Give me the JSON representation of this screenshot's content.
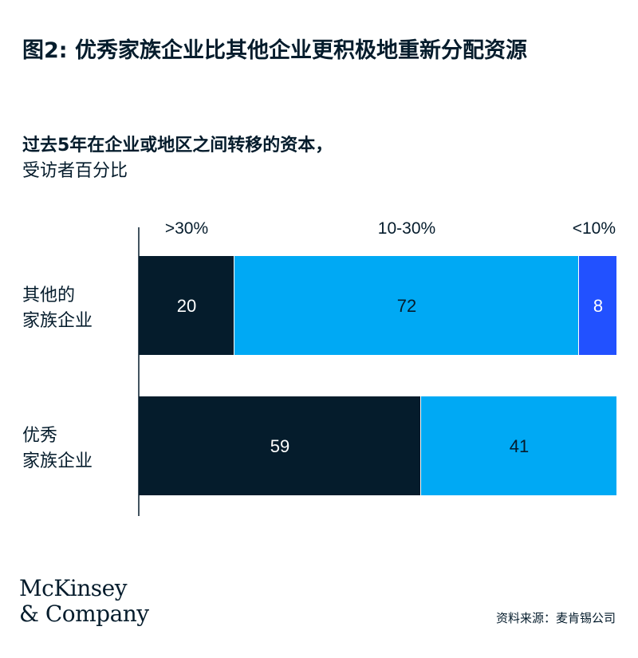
{
  "title": "图2: 优秀家族企业比其他企业更积极地重新分配资源",
  "subtitle": "过去5年在企业或地区之间转移的资本，",
  "subtitle_unit": "受访者百分比",
  "logo": {
    "line1": "McKinsey",
    "line2": "& Company"
  },
  "source": "资料来源：麦肯锡公司",
  "colors": {
    "dark": "#051c2c",
    "light_blue": "#00a9f4",
    "blue": "#2251ff",
    "text_on_dark": "#ffffff",
    "text_on_light": "#051c2c"
  },
  "chart_data": {
    "type": "bar",
    "orientation": "horizontal-stacked",
    "categories": [
      "其他的\n家族企业",
      "优秀\n家族企业"
    ],
    "series": [
      {
        "name": ">30%",
        "color": "#051c2c",
        "values": [
          20,
          59
        ]
      },
      {
        "name": "10-30%",
        "color": "#00a9f4",
        "values": [
          72,
          41
        ]
      },
      {
        "name": "<10%",
        "color": "#2251ff",
        "values": [
          8,
          0
        ]
      }
    ],
    "xlim": [
      0,
      100
    ],
    "legend_placement": "top",
    "grid": false
  }
}
